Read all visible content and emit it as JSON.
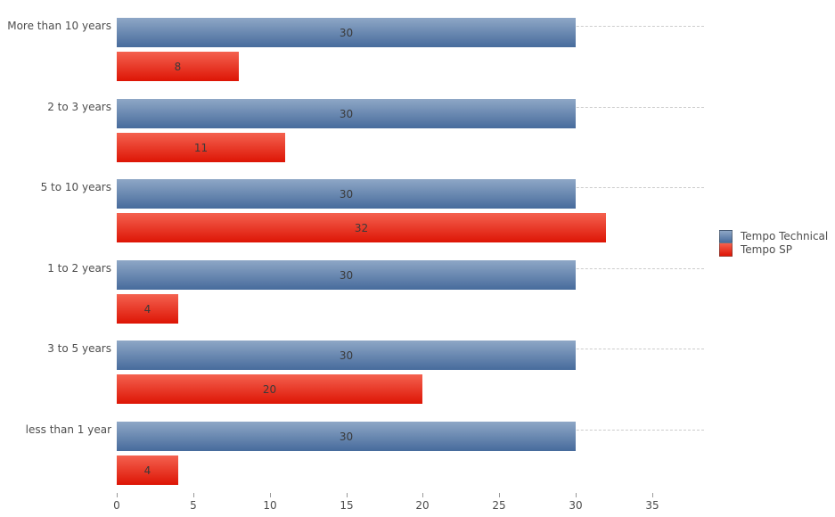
{
  "chart_data": {
    "type": "bar",
    "orientation": "horizontal",
    "title": "",
    "xlabel": "",
    "ylabel": "",
    "categories": [
      "More than 10 years",
      "2 to 3 years",
      "5 to 10 years",
      "1 to 2 years",
      "3 to 5 years",
      "less than 1 year"
    ],
    "series": [
      {
        "name": "Tempo Technical",
        "color_top": "#8ea7c6",
        "color_bottom": "#476b9c",
        "values": [
          30,
          30,
          30,
          30,
          30,
          30
        ]
      },
      {
        "name": "Tempo SP",
        "color_top": "#f4614f",
        "color_bottom": "#dd1505",
        "values": [
          8,
          11,
          32,
          4,
          20,
          4
        ]
      }
    ],
    "xticks": [
      0,
      5,
      10,
      15,
      20,
      25,
      30,
      35
    ],
    "xlim": [
      0,
      38.4
    ],
    "grid": "dashed-horizontal-category-lines",
    "gridline_color": "#cccccc",
    "value_labels": "centered-inside-bars",
    "value_label_color": "#3a3a3a",
    "axis_text_color": "#4d4d4d",
    "legend_position": "right",
    "background": "#ffffff"
  },
  "legend": {
    "entries": [
      {
        "label": "Tempo Technical"
      },
      {
        "label": "Tempo SP"
      }
    ]
  }
}
